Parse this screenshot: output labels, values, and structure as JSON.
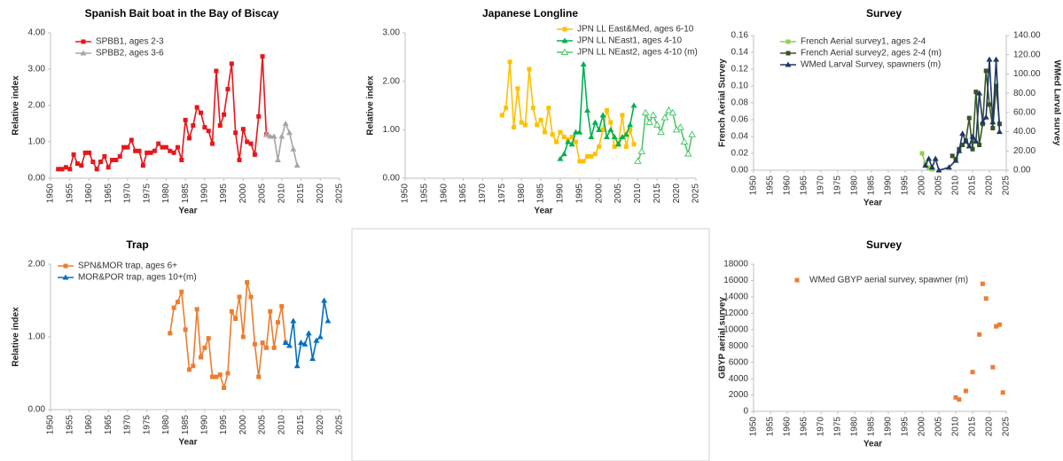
{
  "chart_data": [
    {
      "type": "line",
      "title": "Spanish Bait boat in the Bay of Biscay",
      "xlabel": "Year",
      "ylabel": "Relative index",
      "legend": "upper-left",
      "xlim": [
        1950,
        2025
      ],
      "xticks": [
        1950,
        1955,
        1960,
        1965,
        1970,
        1975,
        1980,
        1985,
        1990,
        1995,
        2000,
        2005,
        2010,
        2015,
        2020,
        2025
      ],
      "ylim": [
        0,
        4
      ],
      "yticks": [
        {
          "value": 0,
          "label": "0.00"
        },
        {
          "value": 1,
          "label": "1.00"
        },
        {
          "value": 2,
          "label": "2.00"
        },
        {
          "value": 3,
          "label": "3.00"
        },
        {
          "value": 4,
          "label": "4.00"
        }
      ],
      "series": [
        {
          "name": "SPBB1, ages 2-3",
          "color": "#e8161c",
          "marker": "square",
          "x": [
            1952,
            1953,
            1954,
            1955,
            1956,
            1957,
            1958,
            1959,
            1960,
            1961,
            1962,
            1963,
            1964,
            1965,
            1966,
            1967,
            1968,
            1969,
            1970,
            1971,
            1972,
            1973,
            1974,
            1975,
            1976,
            1977,
            1978,
            1979,
            1980,
            1981,
            1982,
            1983,
            1984,
            1985,
            1986,
            1987,
            1988,
            1989,
            1990,
            1991,
            1992,
            1993,
            1994,
            1995,
            1996,
            1997,
            1998,
            1999,
            2000,
            2001,
            2002,
            2003,
            2004,
            2005,
            2006
          ],
          "values": [
            0.25,
            0.25,
            0.3,
            0.25,
            0.65,
            0.4,
            0.35,
            0.7,
            0.7,
            0.45,
            0.25,
            0.45,
            0.6,
            0.3,
            0.5,
            0.5,
            0.6,
            0.85,
            0.85,
            1.05,
            0.75,
            0.75,
            0.35,
            0.7,
            0.7,
            0.75,
            0.95,
            0.85,
            0.85,
            0.75,
            0.7,
            0.85,
            0.5,
            1.6,
            1.1,
            1.45,
            1.95,
            1.8,
            1.4,
            1.3,
            0.95,
            2.95,
            1.45,
            1.75,
            2.45,
            3.15,
            1.25,
            0.5,
            1.35,
            1.0,
            0.95,
            0.65,
            1.7,
            3.35,
            1.2
          ]
        },
        {
          "name": "SPBB2, ages 3-6",
          "color": "#a5a5a5",
          "marker": "triangle",
          "x": [
            2006,
            2007,
            2008,
            2009,
            2010,
            2011,
            2012,
            2013,
            2014
          ],
          "values": [
            1.2,
            1.15,
            1.15,
            0.5,
            1.15,
            1.5,
            1.25,
            0.8,
            0.35
          ]
        }
      ]
    },
    {
      "type": "line",
      "title": "Japanese Longline",
      "xlabel": "Year",
      "ylabel": "Relative index",
      "legend": "upper-center",
      "xlim": [
        1950,
        2025
      ],
      "xticks": [
        1950,
        1955,
        1960,
        1965,
        1970,
        1975,
        1980,
        1985,
        1990,
        1995,
        2000,
        2005,
        2010,
        2015,
        2020,
        2025
      ],
      "ylim": [
        0,
        3
      ],
      "yticks": [
        {
          "value": 0,
          "label": "0.00"
        },
        {
          "value": 1,
          "label": "1.00"
        },
        {
          "value": 2,
          "label": "2.00"
        },
        {
          "value": 3,
          "label": "3.00"
        }
      ],
      "series": [
        {
          "name": "JPN LL East&Med, ages 6-10",
          "color": "#ffc000",
          "marker": "square",
          "x": [
            1975,
            1976,
            1977,
            1978,
            1979,
            1980,
            1981,
            1982,
            1983,
            1984,
            1985,
            1986,
            1987,
            1988,
            1989,
            1990,
            1991,
            1992,
            1993,
            1994,
            1995,
            1996,
            1997,
            1998,
            1999,
            2000,
            2001,
            2002,
            2003,
            2004,
            2005,
            2006,
            2007,
            2008,
            2009
          ],
          "values": [
            1.3,
            1.45,
            2.4,
            1.05,
            1.85,
            1.15,
            1.1,
            2.25,
            1.45,
            1.1,
            1.2,
            0.95,
            1.45,
            0.9,
            0.75,
            0.95,
            0.85,
            0.8,
            0.85,
            0.75,
            0.35,
            0.35,
            0.45,
            0.45,
            0.5,
            0.65,
            1.0,
            1.4,
            1.15,
            0.65,
            0.7,
            1.3,
            0.65,
            1.0,
            0.7
          ]
        },
        {
          "name": "JPN LL NEast1, ages 4-10",
          "color": "#00b050",
          "marker": "triangle",
          "x": [
            1990,
            1991,
            1992,
            1993,
            1994,
            1995,
            1996,
            1997,
            1998,
            1999,
            2000,
            2001,
            2002,
            2003,
            2004,
            2005,
            2006,
            2007,
            2008,
            2009
          ],
          "values": [
            0.4,
            0.5,
            0.75,
            0.7,
            0.95,
            0.95,
            2.35,
            1.4,
            0.85,
            1.15,
            1.0,
            1.3,
            0.85,
            1.0,
            0.85,
            0.7,
            0.85,
            0.9,
            1.1,
            1.5
          ]
        },
        {
          "name": "JPN LL NEast2, ages 4-10 (m)",
          "color": "#4fc96b",
          "marker": "triangle-open",
          "x": [
            2010,
            2011,
            2012,
            2013,
            2014,
            2015,
            2016,
            2017,
            2018,
            2019,
            2020,
            2021,
            2022,
            2023,
            2024
          ],
          "values": [
            0.35,
            0.55,
            1.35,
            1.15,
            1.3,
            1.1,
            0.95,
            1.25,
            1.4,
            1.35,
            1.0,
            1.05,
            0.75,
            0.5,
            0.9
          ]
        }
      ]
    },
    {
      "type": "line",
      "title": "Survey",
      "xlabel": "Year",
      "ylabel": "French Aerial Survey",
      "y2label": "WMed Larval survey",
      "legend": "upper-left",
      "xlim": [
        1950,
        2025
      ],
      "xticks": [
        1950,
        1955,
        1960,
        1965,
        1970,
        1975,
        1980,
        1985,
        1990,
        1995,
        2000,
        2005,
        2010,
        2015,
        2020,
        2025
      ],
      "ylim": [
        0,
        0.16
      ],
      "yticks": [
        {
          "value": 0,
          "label": "0.00"
        },
        0.02,
        0.04,
        0.06,
        0.08,
        {
          "value": 0.1,
          "label": "0.10"
        },
        0.12,
        0.14,
        0.16
      ],
      "y2lim": [
        0,
        140
      ],
      "y2ticks": [
        {
          "value": 0,
          "label": "0.00"
        },
        {
          "value": 20,
          "label": "20.00"
        },
        {
          "value": 40,
          "label": "40.00"
        },
        {
          "value": 60,
          "label": "60.00"
        },
        {
          "value": 80,
          "label": "80.00"
        },
        {
          "value": 100,
          "label": "100.00"
        },
        {
          "value": 120,
          "label": "120.00"
        },
        {
          "value": 140,
          "label": "140.00"
        }
      ],
      "series": [
        {
          "name": "French Aerial survey1, ages 2-4",
          "color": "#92d050",
          "marker": "square",
          "x": [
            2000,
            2001,
            2002,
            2003
          ],
          "values": [
            0.02,
            0.008,
            0.003,
            0.001
          ]
        },
        {
          "name": "French Aerial survey2, ages 2-4 (m)",
          "color": "#375623",
          "marker": "square",
          "x": [
            2009,
            2010,
            2011,
            2012,
            2013,
            2014,
            2015,
            2016,
            2017,
            2018,
            2019,
            2020,
            2021,
            2022,
            2023
          ],
          "values": [
            0.017,
            0.013,
            0.025,
            0.03,
            0.035,
            0.062,
            0.025,
            0.093,
            0.03,
            0.055,
            0.118,
            0.078,
            0.05,
            0.1,
            0.055
          ]
        },
        {
          "name": "WMed Larval Survey, spawners (m)",
          "color": "#1f3864",
          "marker": "triangle",
          "axis": "y2",
          "x": [
            2001,
            2002,
            2003,
            2004,
            2005,
            2008,
            2010,
            2011,
            2012,
            2013,
            2014,
            2015,
            2016,
            2017,
            2018,
            2019,
            2020,
            2021,
            2022,
            2023
          ],
          "values": [
            5,
            12,
            3,
            12,
            0,
            3,
            10,
            20,
            38,
            30,
            25,
            35,
            30,
            80,
            50,
            55,
            115,
            50,
            115,
            40
          ]
        }
      ]
    },
    {
      "type": "line",
      "title": "Trap",
      "xlabel": "Year",
      "ylabel": "Relative index",
      "legend": "upper-left",
      "xlim": [
        1950,
        2025
      ],
      "xticks": [
        1950,
        1955,
        1960,
        1965,
        1970,
        1975,
        1980,
        1985,
        1990,
        1995,
        2000,
        2005,
        2010,
        2015,
        2020,
        2025
      ],
      "ylim": [
        0,
        2
      ],
      "yticks": [
        {
          "value": 0,
          "label": "0.00"
        },
        {
          "value": 1,
          "label": "1.00"
        },
        {
          "value": 2,
          "label": "2.00"
        }
      ],
      "series": [
        {
          "name": "SPN&MOR trap, ages 6+",
          "color": "#ed7d31",
          "marker": "square",
          "x": [
            1981,
            1982,
            1983,
            1984,
            1985,
            1986,
            1987,
            1988,
            1989,
            1990,
            1991,
            1992,
            1993,
            1994,
            1995,
            1996,
            1997,
            1998,
            1999,
            2000,
            2001,
            2002,
            2003,
            2004,
            2005,
            2006,
            2007,
            2008,
            2009,
            2010,
            2011
          ],
          "values": [
            1.05,
            1.4,
            1.48,
            1.62,
            1.1,
            0.55,
            0.6,
            1.38,
            0.72,
            0.85,
            0.98,
            0.45,
            0.45,
            0.48,
            0.3,
            0.5,
            1.35,
            1.25,
            1.55,
            1.0,
            1.75,
            1.55,
            0.9,
            0.45,
            0.92,
            0.85,
            1.35,
            0.85,
            1.2,
            1.42,
            0.92
          ]
        },
        {
          "name": "MOR&POR trap, ages 10+(m)",
          "color": "#0070c0",
          "marker": "triangle",
          "x": [
            2011,
            2012,
            2013,
            2014,
            2015,
            2016,
            2017,
            2018,
            2019,
            2020,
            2021,
            2022
          ],
          "values": [
            0.92,
            0.88,
            1.22,
            0.6,
            0.92,
            0.9,
            1.05,
            0.7,
            0.95,
            1.0,
            1.5,
            1.22
          ]
        }
      ]
    },
    {
      "type": "scatter",
      "title": "Survey",
      "xlabel": "Year",
      "ylabel": "GBYP aerial survey",
      "legend": "upper-left",
      "xlim": [
        1950,
        2025
      ],
      "xticks": [
        1950,
        1955,
        1960,
        1965,
        1970,
        1975,
        1980,
        1985,
        1990,
        1995,
        2000,
        2005,
        2010,
        2015,
        2020,
        2025
      ],
      "ylim": [
        0,
        18000
      ],
      "yticks": [
        0,
        2000,
        4000,
        6000,
        8000,
        10000,
        12000,
        14000,
        16000,
        18000
      ],
      "series": [
        {
          "name": "WMed GBYP aerial survey, spawner (m)",
          "color": "#ed7d31",
          "marker": "square",
          "x": [
            2010,
            2011,
            2013,
            2015,
            2017,
            2018,
            2019,
            2021,
            2022,
            2023,
            2024
          ],
          "values": [
            1700,
            1450,
            2500,
            4800,
            9400,
            15600,
            13800,
            5400,
            10400,
            10600,
            2300
          ]
        }
      ]
    }
  ]
}
